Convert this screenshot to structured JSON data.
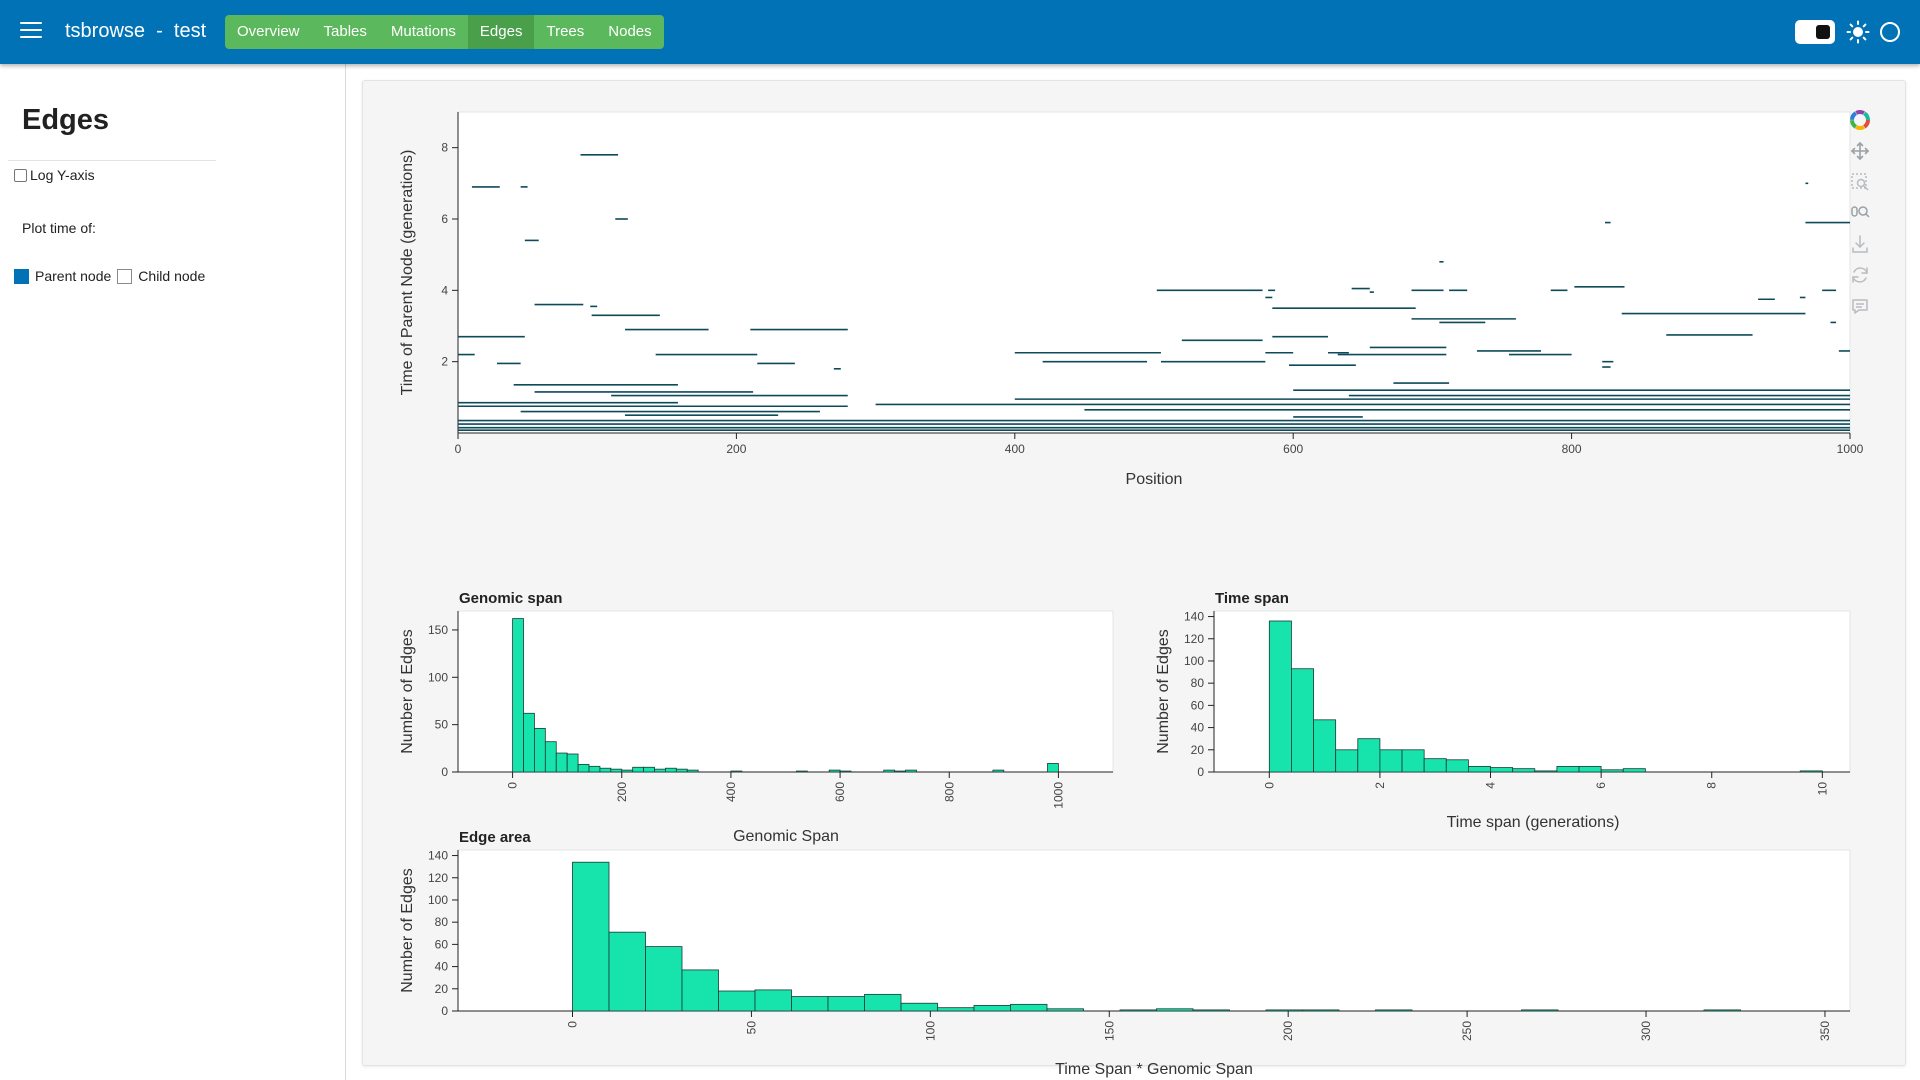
{
  "header": {
    "title": "tsbrowse  -  test",
    "tabs": [
      {
        "label": "Overview",
        "active": false
      },
      {
        "label": "Tables",
        "active": false
      },
      {
        "label": "Mutations",
        "active": false
      },
      {
        "label": "Edges",
        "active": true
      },
      {
        "label": "Trees",
        "active": false
      },
      {
        "label": "Nodes",
        "active": false
      }
    ]
  },
  "sidebar": {
    "title": "Edges",
    "log_y_label": "Log Y-axis",
    "plot_time_label": "Plot time of:",
    "parent_label": "Parent node",
    "child_label": "Child node"
  },
  "toolbar": {
    "icons": [
      "bokeh-logo-icon",
      "pan-icon",
      "box-zoom-icon",
      "wheel-zoom-icon",
      "save-icon",
      "reset-icon",
      "hover-icon"
    ]
  },
  "colors": {
    "header": "#0072b5",
    "nav": "#5cb85c",
    "nav_active": "#4a9f4a",
    "segment": "#0e4a5a",
    "bar_fill": "#17e3ad",
    "bar_edge": "#1a3a32"
  },
  "chart_data": [
    {
      "type": "scatter",
      "title": "",
      "xlabel": "Position",
      "ylabel": "Time of Parent Node (generations)",
      "xlim": [
        0,
        1000
      ],
      "ylim": [
        0,
        9
      ],
      "x_ticks": [
        "0",
        "200",
        "400",
        "600",
        "800",
        "1000"
      ],
      "y_ticks": [
        "2",
        "4",
        "6",
        "8"
      ],
      "segments": [
        [
          10,
          30,
          6.9
        ],
        [
          45,
          50,
          6.9
        ],
        [
          88,
          115,
          7.8
        ],
        [
          113,
          122,
          6.0
        ],
        [
          48,
          58,
          5.4
        ],
        [
          55,
          90,
          3.6
        ],
        [
          95,
          100,
          3.55
        ],
        [
          96,
          145,
          3.3
        ],
        [
          120,
          180,
          2.9
        ],
        [
          210,
          280,
          2.9
        ],
        [
          0,
          48,
          2.7
        ],
        [
          0,
          12,
          2.2
        ],
        [
          28,
          45,
          1.95
        ],
        [
          142,
          215,
          2.2
        ],
        [
          215,
          242,
          1.95
        ],
        [
          270,
          275,
          1.8
        ],
        [
          40,
          158,
          1.35
        ],
        [
          55,
          212,
          1.15
        ],
        [
          110,
          280,
          1.05
        ],
        [
          0,
          158,
          0.85
        ],
        [
          0,
          280,
          0.75
        ],
        [
          45,
          260,
          0.6
        ],
        [
          120,
          230,
          0.5
        ],
        [
          400,
          505,
          2.25
        ],
        [
          420,
          495,
          2.0
        ],
        [
          505,
          580,
          2.0
        ],
        [
          580,
          585,
          3.8
        ],
        [
          502,
          578,
          4.0
        ],
        [
          582,
          587,
          4.0
        ],
        [
          642,
          655,
          4.05
        ],
        [
          655,
          658,
          3.95
        ],
        [
          585,
          688,
          3.5
        ],
        [
          585,
          625,
          2.7
        ],
        [
          520,
          578,
          2.6
        ],
        [
          580,
          600,
          2.25
        ],
        [
          625,
          640,
          2.25
        ],
        [
          597,
          645,
          1.9
        ],
        [
          655,
          710,
          2.4
        ],
        [
          632,
          710,
          2.2
        ],
        [
          705,
          738,
          3.1
        ],
        [
          685,
          708,
          4.0
        ],
        [
          712,
          725,
          4.0
        ],
        [
          705,
          708,
          4.8
        ],
        [
          822,
          830,
          2.0
        ],
        [
          822,
          828,
          1.85
        ],
        [
          755,
          800,
          2.2
        ],
        [
          732,
          778,
          2.3
        ],
        [
          685,
          760,
          3.2
        ],
        [
          672,
          712,
          1.4
        ],
        [
          802,
          838,
          4.1
        ],
        [
          785,
          797,
          4.0
        ],
        [
          824,
          828,
          5.9
        ],
        [
          836,
          968,
          3.35
        ],
        [
          868,
          930,
          2.75
        ],
        [
          934,
          946,
          3.75
        ],
        [
          968,
          1000,
          5.9
        ],
        [
          968,
          970,
          7.0
        ],
        [
          980,
          990,
          4.0
        ],
        [
          986,
          990,
          3.1
        ],
        [
          992,
          1000,
          2.3
        ],
        [
          964,
          968,
          3.8
        ],
        [
          600,
          1000,
          1.2
        ],
        [
          640,
          1000,
          1.05
        ],
        [
          400,
          1000,
          0.95
        ],
        [
          300,
          1000,
          0.8
        ],
        [
          450,
          1000,
          0.65
        ],
        [
          600,
          650,
          0.45
        ],
        [
          0,
          1000,
          0.35
        ],
        [
          0,
          1000,
          0.25
        ],
        [
          0,
          1000,
          0.15
        ],
        [
          0,
          1000,
          0.08
        ]
      ]
    },
    {
      "type": "bar",
      "title": "Genomic span",
      "xlabel": "Genomic Span",
      "ylabel": "Number of Edges",
      "xlim": [
        -100,
        1100
      ],
      "ylim": [
        0,
        170
      ],
      "x_ticks": [
        "0",
        "200",
        "400",
        "600",
        "800",
        "1000"
      ],
      "y_ticks": [
        "0",
        "50",
        "100",
        "150"
      ],
      "bin_width": 20,
      "bins": [
        [
          0,
          162
        ],
        [
          20,
          62
        ],
        [
          40,
          46
        ],
        [
          60,
          32
        ],
        [
          80,
          20
        ],
        [
          100,
          19
        ],
        [
          120,
          8
        ],
        [
          140,
          6
        ],
        [
          160,
          4
        ],
        [
          180,
          3
        ],
        [
          200,
          2
        ],
        [
          220,
          5
        ],
        [
          240,
          5
        ],
        [
          260,
          3
        ],
        [
          280,
          4
        ],
        [
          300,
          3
        ],
        [
          320,
          2
        ],
        [
          400,
          1
        ],
        [
          520,
          1
        ],
        [
          580,
          2
        ],
        [
          600,
          1
        ],
        [
          680,
          2
        ],
        [
          700,
          1
        ],
        [
          720,
          2
        ],
        [
          880,
          2
        ],
        [
          980,
          9
        ]
      ]
    },
    {
      "type": "bar",
      "title": "Time span",
      "xlabel": "Time span (generations)",
      "ylabel": "Number of Edges",
      "xlim": [
        -1,
        10.5
      ],
      "ylim": [
        0,
        145
      ],
      "x_ticks": [
        "0",
        "2",
        "4",
        "6",
        "8",
        "10"
      ],
      "y_ticks": [
        "0",
        "20",
        "40",
        "60",
        "80",
        "100",
        "120",
        "140"
      ],
      "bin_width": 0.4,
      "bins": [
        [
          0,
          136
        ],
        [
          0.4,
          93
        ],
        [
          0.8,
          47
        ],
        [
          1.2,
          20
        ],
        [
          1.6,
          30
        ],
        [
          2.0,
          20
        ],
        [
          2.4,
          20
        ],
        [
          2.8,
          12
        ],
        [
          3.2,
          11
        ],
        [
          3.6,
          5
        ],
        [
          4.0,
          4
        ],
        [
          4.4,
          3
        ],
        [
          4.8,
          1
        ],
        [
          5.2,
          5
        ],
        [
          5.6,
          5
        ],
        [
          6.0,
          2
        ],
        [
          6.4,
          3
        ],
        [
          9.6,
          1
        ]
      ]
    },
    {
      "type": "bar",
      "title": "Edge area",
      "xlabel": "Time Span * Genomic Span",
      "ylabel": "Number of Edges",
      "xlim": [
        -32,
        357
      ],
      "ylim": [
        0,
        145
      ],
      "x_ticks": [
        "0",
        "50",
        "100",
        "150",
        "200",
        "250",
        "300",
        "350"
      ],
      "y_ticks": [
        "0",
        "20",
        "40",
        "60",
        "80",
        "100",
        "120",
        "140"
      ],
      "bin_width": 10.2,
      "bins": [
        [
          0,
          134
        ],
        [
          10.2,
          71
        ],
        [
          20.4,
          58
        ],
        [
          30.6,
          37
        ],
        [
          40.8,
          18
        ],
        [
          51,
          19
        ],
        [
          61.2,
          13
        ],
        [
          71.4,
          13
        ],
        [
          81.6,
          15
        ],
        [
          91.8,
          7
        ],
        [
          102,
          3
        ],
        [
          112.2,
          5
        ],
        [
          122.4,
          6
        ],
        [
          132.6,
          2
        ],
        [
          153,
          1
        ],
        [
          163.2,
          2
        ],
        [
          173.4,
          1
        ],
        [
          193.8,
          1
        ],
        [
          204,
          1
        ],
        [
          224.4,
          1
        ],
        [
          265.2,
          1
        ],
        [
          316.2,
          1
        ]
      ]
    }
  ]
}
